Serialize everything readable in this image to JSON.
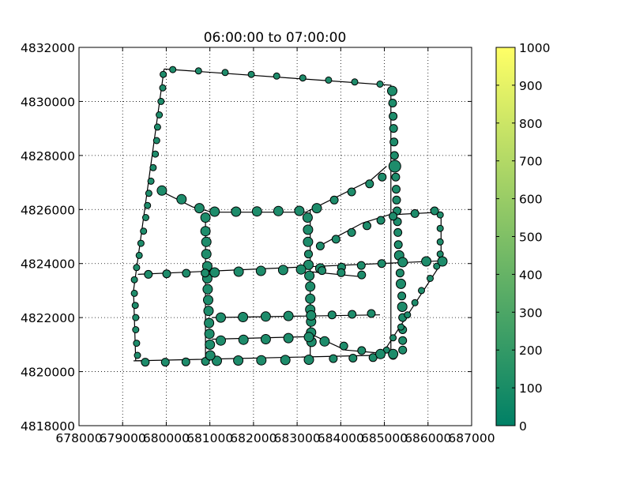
{
  "chart_data": {
    "type": "scatter",
    "title": "06:00:00 to 07:00:00",
    "xlim": [
      678000,
      687000
    ],
    "ylim": [
      4818000,
      4832000
    ],
    "x_ticks": [
      678000,
      679000,
      680000,
      681000,
      682000,
      683000,
      684000,
      685000,
      686000,
      687000
    ],
    "x_tick_labels": [
      "678000",
      "679000",
      "680000",
      "681000",
      "682000",
      "683000",
      "684000",
      "685000",
      "686000",
      "687000"
    ],
    "y_ticks": [
      4818000,
      4820000,
      4822000,
      4824000,
      4826000,
      4828000,
      4830000,
      4832000
    ],
    "y_tick_labels": [
      "4818000",
      "4820000",
      "4822000",
      "4824000",
      "4826000",
      "4828000",
      "4830000",
      "4832000"
    ],
    "grid": true,
    "colorbar": {
      "colormap": "summer",
      "range": [
        0,
        1000
      ],
      "ticks": [
        0,
        100,
        200,
        300,
        400,
        500,
        600,
        700,
        800,
        900,
        1000
      ],
      "tick_labels": [
        "0",
        "100",
        "200",
        "300",
        "400",
        "500",
        "600",
        "700",
        "800",
        "900",
        "1000"
      ],
      "low_color": "#008066",
      "high_color": "#ffff66"
    },
    "marker_color": "#1e8c6b",
    "routes": [
      {
        "x": [
          679950,
          685150,
          685150
        ],
        "y": [
          4831200,
          4830600,
          4820700
        ]
      },
      {
        "x": [
          679950,
          679250,
          679300,
          684750
        ],
        "y": [
          4831200,
          4823000,
          4820400,
          4820600
        ]
      },
      {
        "x": [
          680900,
          680900
        ],
        "y": [
          4825800,
          4820400
        ]
      },
      {
        "x": [
          683300,
          683300
        ],
        "y": [
          4826000,
          4820400
        ]
      },
      {
        "x": [
          686300,
          686300,
          685050
        ],
        "y": [
          4825900,
          4824000,
          4820900
        ]
      },
      {
        "x": [
          679350,
          686300
        ],
        "y": [
          4823600,
          4824100
        ]
      },
      {
        "x": [
          681050,
          684900
        ],
        "y": [
          4822000,
          4822100
        ]
      },
      {
        "x": [
          681050,
          683400
        ],
        "y": [
          4821200,
          4821300
        ]
      },
      {
        "x": [
          679850,
          680600,
          681050,
          683200,
          684700,
          685050
        ],
        "y": [
          4826700,
          4826100,
          4825900,
          4825900,
          4827100,
          4827600
        ]
      },
      {
        "x": [
          683450,
          684500,
          685100,
          686300
        ],
        "y": [
          4824600,
          4825500,
          4825800,
          4825900
        ]
      },
      {
        "x": [
          683300,
          684550
        ],
        "y": [
          4823700,
          4823500
        ]
      },
      {
        "x": [
          683300,
          684100,
          684800
        ],
        "y": [
          4821400,
          4820800,
          4820700
        ]
      },
      {
        "x": [
          679250,
          679500
        ],
        "y": [
          4820400,
          4820400
        ]
      }
    ],
    "points": [
      {
        "x": 680150,
        "y": 4831180,
        "size": "s"
      },
      {
        "x": 680740,
        "y": 4831130,
        "size": "s"
      },
      {
        "x": 681350,
        "y": 4831070,
        "size": "s"
      },
      {
        "x": 681950,
        "y": 4831000,
        "size": "s"
      },
      {
        "x": 682530,
        "y": 4830940,
        "size": "s"
      },
      {
        "x": 683130,
        "y": 4830870,
        "size": "s"
      },
      {
        "x": 683720,
        "y": 4830790,
        "size": "s"
      },
      {
        "x": 684320,
        "y": 4830720,
        "size": "s"
      },
      {
        "x": 684900,
        "y": 4830640,
        "size": "s"
      },
      {
        "x": 679930,
        "y": 4831000,
        "size": "s"
      },
      {
        "x": 679920,
        "y": 4830500,
        "size": "s"
      },
      {
        "x": 679880,
        "y": 4830000,
        "size": "s"
      },
      {
        "x": 679840,
        "y": 4829500,
        "size": "s"
      },
      {
        "x": 679800,
        "y": 4829050,
        "size": "s"
      },
      {
        "x": 679780,
        "y": 4828550,
        "size": "s"
      },
      {
        "x": 679750,
        "y": 4828050,
        "size": "s"
      },
      {
        "x": 679700,
        "y": 4827550,
        "size": "s"
      },
      {
        "x": 679650,
        "y": 4827050,
        "size": "s"
      },
      {
        "x": 679600,
        "y": 4826600,
        "size": "s"
      },
      {
        "x": 679570,
        "y": 4826150,
        "size": "s"
      },
      {
        "x": 679530,
        "y": 4825700,
        "size": "s"
      },
      {
        "x": 679480,
        "y": 4825200,
        "size": "s"
      },
      {
        "x": 679420,
        "y": 4824750,
        "size": "s"
      },
      {
        "x": 679380,
        "y": 4824300,
        "size": "s"
      },
      {
        "x": 679320,
        "y": 4823850,
        "size": "s"
      },
      {
        "x": 679270,
        "y": 4823400,
        "size": "s"
      },
      {
        "x": 679270,
        "y": 4822900,
        "size": "s"
      },
      {
        "x": 679290,
        "y": 4822450,
        "size": "s"
      },
      {
        "x": 679300,
        "y": 4822000,
        "size": "s"
      },
      {
        "x": 679300,
        "y": 4821550,
        "size": "s"
      },
      {
        "x": 679320,
        "y": 4821050,
        "size": "s"
      },
      {
        "x": 679340,
        "y": 4820600,
        "size": "s"
      },
      {
        "x": 685180,
        "y": 4830390,
        "size": "l"
      },
      {
        "x": 685190,
        "y": 4829940,
        "size": "m"
      },
      {
        "x": 685200,
        "y": 4829450,
        "size": "m"
      },
      {
        "x": 685210,
        "y": 4829000,
        "size": "m"
      },
      {
        "x": 685220,
        "y": 4828500,
        "size": "m"
      },
      {
        "x": 685230,
        "y": 4828000,
        "size": "m"
      },
      {
        "x": 685240,
        "y": 4827600,
        "size": "xl"
      },
      {
        "x": 685260,
        "y": 4827200,
        "size": "m"
      },
      {
        "x": 685270,
        "y": 4826750,
        "size": "m"
      },
      {
        "x": 685280,
        "y": 4826350,
        "size": "m"
      },
      {
        "x": 685290,
        "y": 4825950,
        "size": "m"
      },
      {
        "x": 685300,
        "y": 4825550,
        "size": "m"
      },
      {
        "x": 685310,
        "y": 4825150,
        "size": "m"
      },
      {
        "x": 685320,
        "y": 4824700,
        "size": "m"
      },
      {
        "x": 685340,
        "y": 4824300,
        "size": "l"
      },
      {
        "x": 685360,
        "y": 4823650,
        "size": "m"
      },
      {
        "x": 685380,
        "y": 4823250,
        "size": "l"
      },
      {
        "x": 685400,
        "y": 4822800,
        "size": "m"
      },
      {
        "x": 685410,
        "y": 4822400,
        "size": "l"
      },
      {
        "x": 685420,
        "y": 4822000,
        "size": "m"
      },
      {
        "x": 685420,
        "y": 4821550,
        "size": "m"
      },
      {
        "x": 685420,
        "y": 4821150,
        "size": "m"
      },
      {
        "x": 685420,
        "y": 4820800,
        "size": "m"
      },
      {
        "x": 679520,
        "y": 4820350,
        "size": "m"
      },
      {
        "x": 679980,
        "y": 4820350,
        "size": "m"
      },
      {
        "x": 680450,
        "y": 4820360,
        "size": "m"
      },
      {
        "x": 680900,
        "y": 4820380,
        "size": "m"
      },
      {
        "x": 681160,
        "y": 4820400,
        "size": "l"
      },
      {
        "x": 681650,
        "y": 4820410,
        "size": "l"
      },
      {
        "x": 682180,
        "y": 4820420,
        "size": "l"
      },
      {
        "x": 682730,
        "y": 4820430,
        "size": "l"
      },
      {
        "x": 683270,
        "y": 4820440,
        "size": "l"
      },
      {
        "x": 683830,
        "y": 4820480,
        "size": "m"
      },
      {
        "x": 684280,
        "y": 4820500,
        "size": "m"
      },
      {
        "x": 684740,
        "y": 4820520,
        "size": "m"
      },
      {
        "x": 685200,
        "y": 4820600,
        "size": "m"
      },
      {
        "x": 685200,
        "y": 4820650,
        "size": "l"
      },
      {
        "x": 680900,
        "y": 4825700,
        "size": "l"
      },
      {
        "x": 680900,
        "y": 4825200,
        "size": "l"
      },
      {
        "x": 680920,
        "y": 4824800,
        "size": "l"
      },
      {
        "x": 680920,
        "y": 4824350,
        "size": "l"
      },
      {
        "x": 680940,
        "y": 4823900,
        "size": "l"
      },
      {
        "x": 680940,
        "y": 4823450,
        "size": "l"
      },
      {
        "x": 680950,
        "y": 4823050,
        "size": "l"
      },
      {
        "x": 680960,
        "y": 4822650,
        "size": "l"
      },
      {
        "x": 680970,
        "y": 4822250,
        "size": "l"
      },
      {
        "x": 680980,
        "y": 4821800,
        "size": "l"
      },
      {
        "x": 680990,
        "y": 4821400,
        "size": "l"
      },
      {
        "x": 681000,
        "y": 4821000,
        "size": "l"
      },
      {
        "x": 681010,
        "y": 4820600,
        "size": "l"
      },
      {
        "x": 683240,
        "y": 4825700,
        "size": "l"
      },
      {
        "x": 683250,
        "y": 4825250,
        "size": "l"
      },
      {
        "x": 683250,
        "y": 4824800,
        "size": "l"
      },
      {
        "x": 683260,
        "y": 4824350,
        "size": "m"
      },
      {
        "x": 683260,
        "y": 4823950,
        "size": "l"
      },
      {
        "x": 683280,
        "y": 4823550,
        "size": "l"
      },
      {
        "x": 683300,
        "y": 4823150,
        "size": "l"
      },
      {
        "x": 683300,
        "y": 4822700,
        "size": "l"
      },
      {
        "x": 683300,
        "y": 4822300,
        "size": "l"
      },
      {
        "x": 683320,
        "y": 4821850,
        "size": "l"
      },
      {
        "x": 683320,
        "y": 4821450,
        "size": "l"
      },
      {
        "x": 683330,
        "y": 4821100,
        "size": "l"
      },
      {
        "x": 686280,
        "y": 4825800,
        "size": "s"
      },
      {
        "x": 686280,
        "y": 4825300,
        "size": "s"
      },
      {
        "x": 686280,
        "y": 4824800,
        "size": "s"
      },
      {
        "x": 686280,
        "y": 4824350,
        "size": "s"
      },
      {
        "x": 686200,
        "y": 4823900,
        "size": "s"
      },
      {
        "x": 686050,
        "y": 4823450,
        "size": "s"
      },
      {
        "x": 685850,
        "y": 4823000,
        "size": "s"
      },
      {
        "x": 685700,
        "y": 4822550,
        "size": "s"
      },
      {
        "x": 685530,
        "y": 4822100,
        "size": "s"
      },
      {
        "x": 685380,
        "y": 4821650,
        "size": "s"
      },
      {
        "x": 685200,
        "y": 4821250,
        "size": "s"
      },
      {
        "x": 685050,
        "y": 4820800,
        "size": "s"
      },
      {
        "x": 679590,
        "y": 4823600,
        "size": "m"
      },
      {
        "x": 680010,
        "y": 4823620,
        "size": "m"
      },
      {
        "x": 680460,
        "y": 4823640,
        "size": "m"
      },
      {
        "x": 680890,
        "y": 4823650,
        "size": "m"
      },
      {
        "x": 681110,
        "y": 4823670,
        "size": "l"
      },
      {
        "x": 681660,
        "y": 4823700,
        "size": "l"
      },
      {
        "x": 682170,
        "y": 4823730,
        "size": "l"
      },
      {
        "x": 682680,
        "y": 4823760,
        "size": "l"
      },
      {
        "x": 683090,
        "y": 4823780,
        "size": "l"
      },
      {
        "x": 683530,
        "y": 4823820,
        "size": "l"
      },
      {
        "x": 684020,
        "y": 4823870,
        "size": "m"
      },
      {
        "x": 684470,
        "y": 4823930,
        "size": "m"
      },
      {
        "x": 684940,
        "y": 4824000,
        "size": "m"
      },
      {
        "x": 685420,
        "y": 4824050,
        "size": "l"
      },
      {
        "x": 685960,
        "y": 4824080,
        "size": "l"
      },
      {
        "x": 686330,
        "y": 4824080,
        "size": "l"
      },
      {
        "x": 681250,
        "y": 4822000,
        "size": "l"
      },
      {
        "x": 681760,
        "y": 4822020,
        "size": "l"
      },
      {
        "x": 682280,
        "y": 4822040,
        "size": "l"
      },
      {
        "x": 682800,
        "y": 4822060,
        "size": "l"
      },
      {
        "x": 683320,
        "y": 4822080,
        "size": "l"
      },
      {
        "x": 683800,
        "y": 4822100,
        "size": "m"
      },
      {
        "x": 684260,
        "y": 4822120,
        "size": "m"
      },
      {
        "x": 684700,
        "y": 4822150,
        "size": "m"
      },
      {
        "x": 681250,
        "y": 4821150,
        "size": "l"
      },
      {
        "x": 681770,
        "y": 4821180,
        "size": "l"
      },
      {
        "x": 682280,
        "y": 4821200,
        "size": "l"
      },
      {
        "x": 682800,
        "y": 4821240,
        "size": "l"
      },
      {
        "x": 683270,
        "y": 4821280,
        "size": "l"
      },
      {
        "x": 683630,
        "y": 4821120,
        "size": "l"
      },
      {
        "x": 684070,
        "y": 4820950,
        "size": "m"
      },
      {
        "x": 684480,
        "y": 4820780,
        "size": "m"
      },
      {
        "x": 684910,
        "y": 4820650,
        "size": "l"
      },
      {
        "x": 679900,
        "y": 4826700,
        "size": "l"
      },
      {
        "x": 680350,
        "y": 4826380,
        "size": "l"
      },
      {
        "x": 680760,
        "y": 4826050,
        "size": "l"
      },
      {
        "x": 681110,
        "y": 4825920,
        "size": "l"
      },
      {
        "x": 681600,
        "y": 4825920,
        "size": "l"
      },
      {
        "x": 682080,
        "y": 4825930,
        "size": "l"
      },
      {
        "x": 682570,
        "y": 4825940,
        "size": "l"
      },
      {
        "x": 683050,
        "y": 4825950,
        "size": "l"
      },
      {
        "x": 683450,
        "y": 4826050,
        "size": "l"
      },
      {
        "x": 683850,
        "y": 4826350,
        "size": "m"
      },
      {
        "x": 684250,
        "y": 4826650,
        "size": "m"
      },
      {
        "x": 684660,
        "y": 4826950,
        "size": "m"
      },
      {
        "x": 684950,
        "y": 4827200,
        "size": "m"
      },
      {
        "x": 683530,
        "y": 4824650,
        "size": "m"
      },
      {
        "x": 683890,
        "y": 4824900,
        "size": "m"
      },
      {
        "x": 684250,
        "y": 4825150,
        "size": "m"
      },
      {
        "x": 684600,
        "y": 4825400,
        "size": "m"
      },
      {
        "x": 684920,
        "y": 4825600,
        "size": "m"
      },
      {
        "x": 685200,
        "y": 4825750,
        "size": "m"
      },
      {
        "x": 685700,
        "y": 4825850,
        "size": "m"
      },
      {
        "x": 686150,
        "y": 4825950,
        "size": "m"
      },
      {
        "x": 683570,
        "y": 4823740,
        "size": "m"
      },
      {
        "x": 684010,
        "y": 4823660,
        "size": "m"
      },
      {
        "x": 684480,
        "y": 4823580,
        "size": "m"
      }
    ]
  }
}
